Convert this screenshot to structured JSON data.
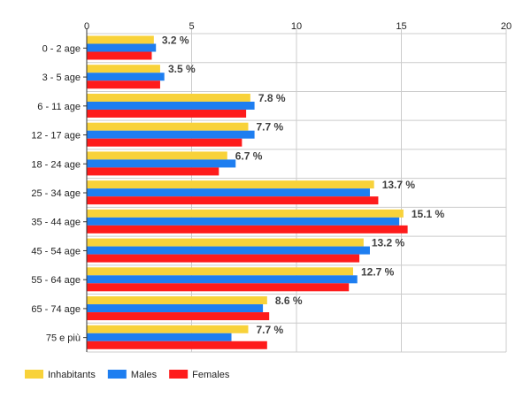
{
  "chart_data": {
    "type": "bar",
    "orientation": "horizontal",
    "categories": [
      "0 - 2 age",
      "3 - 5 age",
      "6 - 11 age",
      "12 - 17 age",
      "18 - 24 age",
      "25 - 34 age",
      "35 - 44 age",
      "45 - 54 age",
      "55 - 64 age",
      "65 - 74 age",
      "75 e più"
    ],
    "series": [
      {
        "name": "Inhabitants",
        "color": "#f8d23a",
        "values": [
          3.2,
          3.5,
          7.8,
          7.7,
          6.7,
          13.7,
          15.1,
          13.2,
          12.7,
          8.6,
          7.7
        ]
      },
      {
        "name": "Males",
        "color": "#1e7ef0",
        "values": [
          3.3,
          3.7,
          8.0,
          8.0,
          7.1,
          13.5,
          14.9,
          13.5,
          12.9,
          8.4,
          6.9
        ]
      },
      {
        "name": "Females",
        "color": "#fe1b1b",
        "values": [
          3.1,
          3.5,
          7.6,
          7.4,
          6.3,
          13.9,
          15.3,
          13.0,
          12.5,
          8.7,
          8.6
        ]
      }
    ],
    "data_labels": [
      "3.2 %",
      "3.5 %",
      "7.8 %",
      "7.7 %",
      "6.7 %",
      "13.7 %",
      "15.1 %",
      "13.2 %",
      "12.7 %",
      "8.6 %",
      "7.7 %"
    ],
    "x_ticks": [
      0,
      5,
      10,
      15,
      20
    ],
    "xlim": [
      0,
      20
    ],
    "grid": true,
    "legend_position": "bottom-left",
    "title": "",
    "xlabel": "",
    "ylabel": ""
  }
}
